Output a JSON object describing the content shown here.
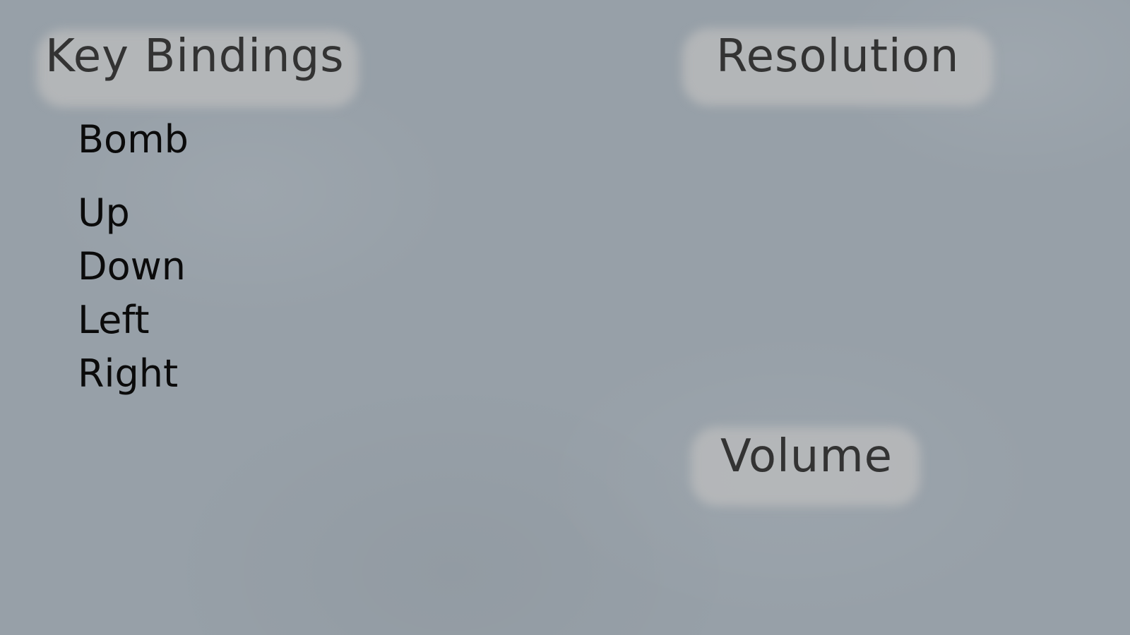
{
  "key_bindings": {
    "title": "Key Bindings",
    "actions": [
      "Bomb",
      "Up",
      "Down",
      "Left",
      "Right"
    ]
  },
  "resolution": {
    "title": "Resolution"
  },
  "volume": {
    "title": "Volume"
  },
  "colors": {
    "background": "#97a0a8",
    "header_text": "#333333",
    "header_smudge": "#bebebe",
    "item_text": "#0b0b0b"
  }
}
